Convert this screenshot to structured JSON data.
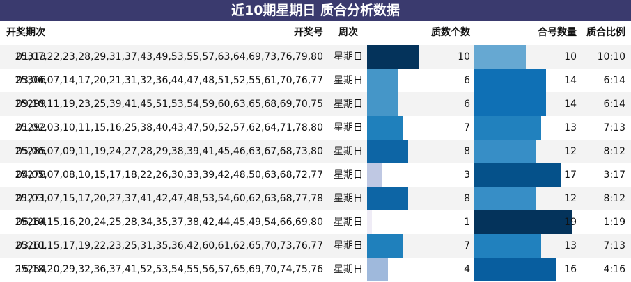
{
  "chart_data": {
    "type": "table",
    "title": "近10期星期日 质合分析数据",
    "columns": [
      "开奖期次",
      "开奖号",
      "周次",
      "质数个数",
      "合号数量",
      "质合比例"
    ],
    "max_count": 20,
    "rows": [
      {
        "period": "25313",
        "numbers": "01,07,22,23,28,29,31,37,43,49,53,55,57,63,64,69,73,76,79,80",
        "weekday": "星期日",
        "prime": 10,
        "composite": 10,
        "ratio": "10:10"
      },
      {
        "period": "25306",
        "numbers": "03,06,07,14,17,20,21,31,32,36,44,47,48,51,52,55,61,70,76,77",
        "weekday": "星期日",
        "prime": 6,
        "composite": 14,
        "ratio": "6:14"
      },
      {
        "period": "25299",
        "numbers": "09,10,11,19,23,25,39,41,45,51,53,54,59,60,63,65,68,69,70,75",
        "weekday": "星期日",
        "prime": 6,
        "composite": 14,
        "ratio": "6:14"
      },
      {
        "period": "25292",
        "numbers": "01,02,03,10,11,15,16,25,38,40,43,47,50,52,57,62,64,71,78,80",
        "weekday": "星期日",
        "prime": 7,
        "composite": 13,
        "ratio": "7:13"
      },
      {
        "period": "25285",
        "numbers": "05,06,07,09,11,19,24,27,28,29,38,39,41,45,46,63,67,68,73,80",
        "weekday": "星期日",
        "prime": 8,
        "composite": 12,
        "ratio": "8:12"
      },
      {
        "period": "25278",
        "numbers": "04,05,07,08,10,15,17,18,22,26,30,33,39,42,48,50,63,68,72,77",
        "weekday": "星期日",
        "prime": 3,
        "composite": 17,
        "ratio": "3:17"
      },
      {
        "period": "25271",
        "numbers": "01,03,07,15,17,20,27,37,41,42,47,48,53,54,60,62,63,68,77,78",
        "weekday": "星期日",
        "prime": 8,
        "composite": 12,
        "ratio": "8:12"
      },
      {
        "period": "25264",
        "numbers": "06,10,15,16,20,24,25,28,34,35,37,38,42,44,45,49,54,66,69,80",
        "weekday": "星期日",
        "prime": 1,
        "composite": 19,
        "ratio": "1:19"
      },
      {
        "period": "25261",
        "numbers": "03,10,15,17,19,22,23,25,31,35,36,42,60,61,62,65,70,73,76,77",
        "weekday": "星期日",
        "prime": 7,
        "composite": 13,
        "ratio": "7:13"
      },
      {
        "period": "25254",
        "numbers": "16,18,20,29,32,36,37,41,52,53,54,55,56,57,65,69,70,74,75,76",
        "weekday": "星期日",
        "prime": 4,
        "composite": 16,
        "ratio": "4:16"
      }
    ],
    "colors": {
      "title_bg": "#3a3a6e",
      "prime_bars": {
        "1": "#efecf6",
        "3": "#bfc8e3",
        "4": "#9fb9dc",
        "6": "#4596c8",
        "7": "#1f80bc",
        "8": "#0d65a5",
        "10": "#04335b"
      },
      "composite_bars": {
        "10": "#66a8d2",
        "12": "#378ec6",
        "13": "#2181be",
        "14": "#0f70b5",
        "16": "#085e9f",
        "17": "#05518a",
        "19": "#04335b"
      }
    }
  }
}
